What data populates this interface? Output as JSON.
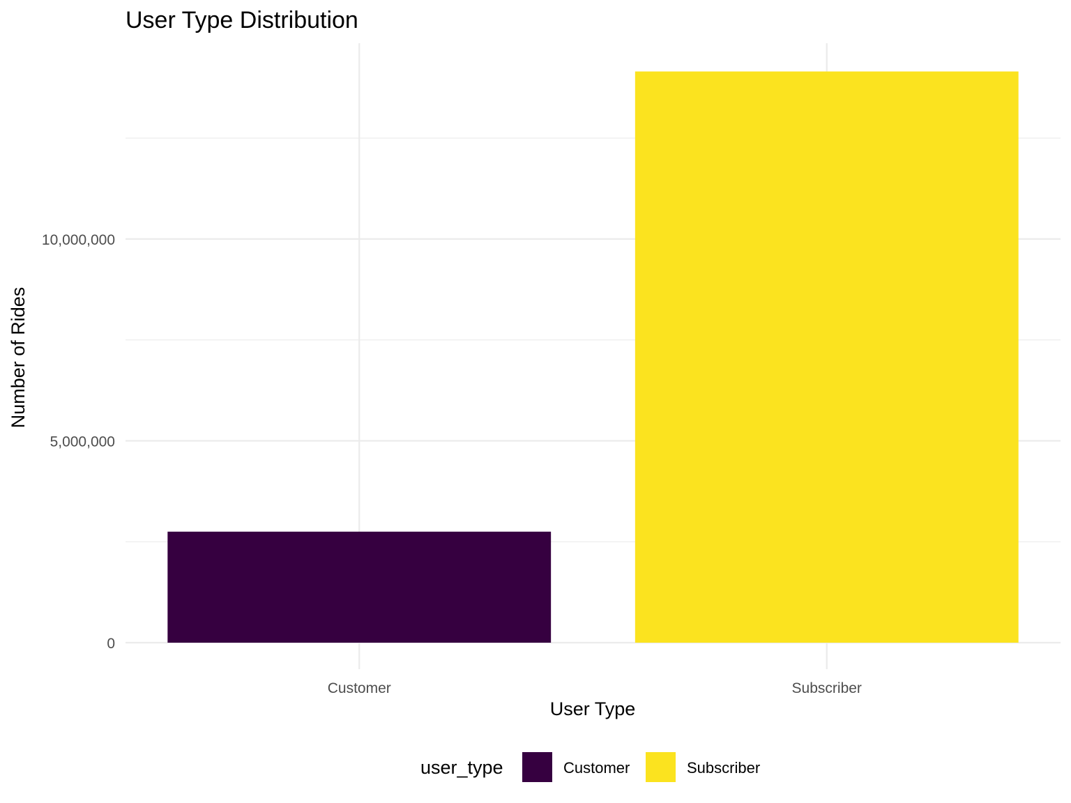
{
  "chart_data": {
    "type": "bar",
    "title": "User Type Distribution",
    "xlabel": "User Type",
    "ylabel": "Number of Rides",
    "categories": [
      "Customer",
      "Subscriber"
    ],
    "values": [
      2750000,
      14150000
    ],
    "colors": [
      "#360040",
      "#fbe31f"
    ],
    "ylim": [
      0,
      14850000
    ],
    "yticks": [
      0,
      5000000,
      10000000
    ],
    "ytick_labels": [
      "0",
      "5,000,000",
      "10,000,000"
    ],
    "yminor": [
      2500000,
      7500000,
      12500000
    ],
    "grid": true,
    "legend": {
      "title": "user_type",
      "position": "bottom",
      "items": [
        "Customer",
        "Subscriber"
      ]
    }
  }
}
